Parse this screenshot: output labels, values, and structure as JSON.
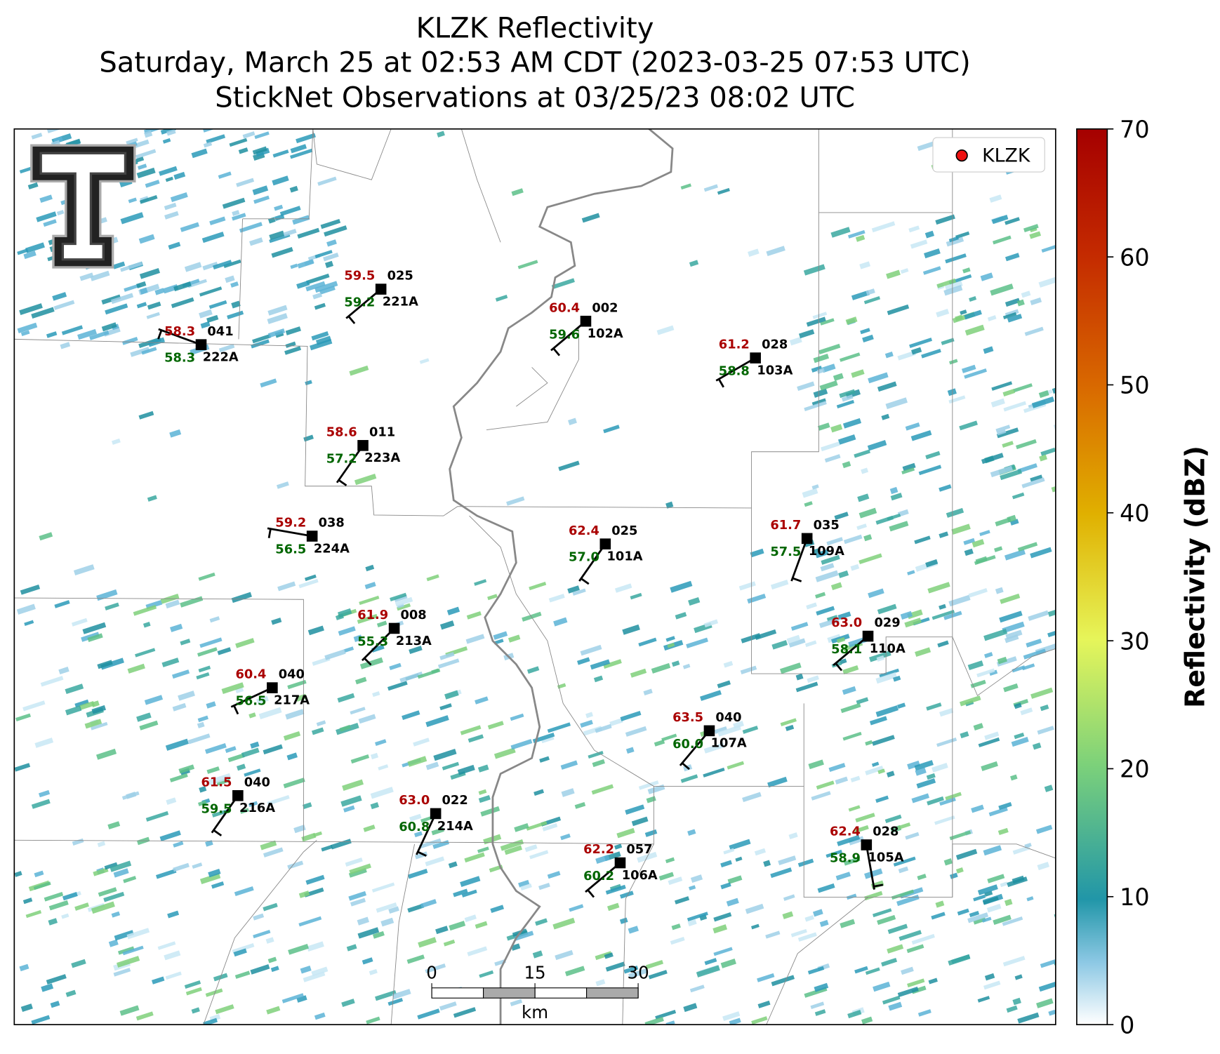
{
  "title": {
    "line1": "KLZK Reflectivity",
    "line2": "Saturday, March 25 at 02:53 AM CDT (2023-03-25 07:53 UTC)",
    "line3": "StickNet Observations at 03/25/23 08:02 UTC"
  },
  "legend": {
    "label": "KLZK"
  },
  "colorbar": {
    "label": "Reflectivity (dBZ)",
    "ticks": [
      0,
      10,
      20,
      30,
      40,
      50,
      60,
      70
    ]
  },
  "scale_bar": {
    "ticks": [
      0,
      15,
      30
    ],
    "unit": "km"
  },
  "stations": [
    {
      "id": "222A",
      "temp": "58.3",
      "dewpoint": "58.3",
      "value": "041"
    },
    {
      "id": "221A",
      "temp": "59.5",
      "dewpoint": "59.2",
      "value": "025"
    },
    {
      "id": "102A",
      "temp": "60.4",
      "dewpoint": "59.6",
      "value": "002"
    },
    {
      "id": "103A",
      "temp": "61.2",
      "dewpoint": "58.8",
      "value": "028"
    },
    {
      "id": "223A",
      "temp": "58.6",
      "dewpoint": "57.2",
      "value": "011"
    },
    {
      "id": "224A",
      "temp": "59.2",
      "dewpoint": "56.5",
      "value": "038"
    },
    {
      "id": "101A",
      "temp": "62.4",
      "dewpoint": "57.0",
      "value": "025"
    },
    {
      "id": "109A",
      "temp": "61.7",
      "dewpoint": "57.5",
      "value": "035"
    },
    {
      "id": "213A",
      "temp": "61.9",
      "dewpoint": "55.3",
      "value": "008"
    },
    {
      "id": "110A",
      "temp": "63.0",
      "dewpoint": "58.1",
      "value": "029"
    },
    {
      "id": "217A",
      "temp": "60.4",
      "dewpoint": "56.5",
      "value": "040"
    },
    {
      "id": "107A",
      "temp": "63.5",
      "dewpoint": "60.0",
      "value": "040"
    },
    {
      "id": "216A",
      "temp": "61.5",
      "dewpoint": "59.5",
      "value": "040"
    },
    {
      "id": "214A",
      "temp": "63.0",
      "dewpoint": "60.8",
      "value": "022"
    },
    {
      "id": "106A",
      "temp": "62.2",
      "dewpoint": "60.2",
      "value": "057"
    },
    {
      "id": "105A",
      "temp": "62.4",
      "dewpoint": "58.9",
      "value": "028"
    }
  ]
}
